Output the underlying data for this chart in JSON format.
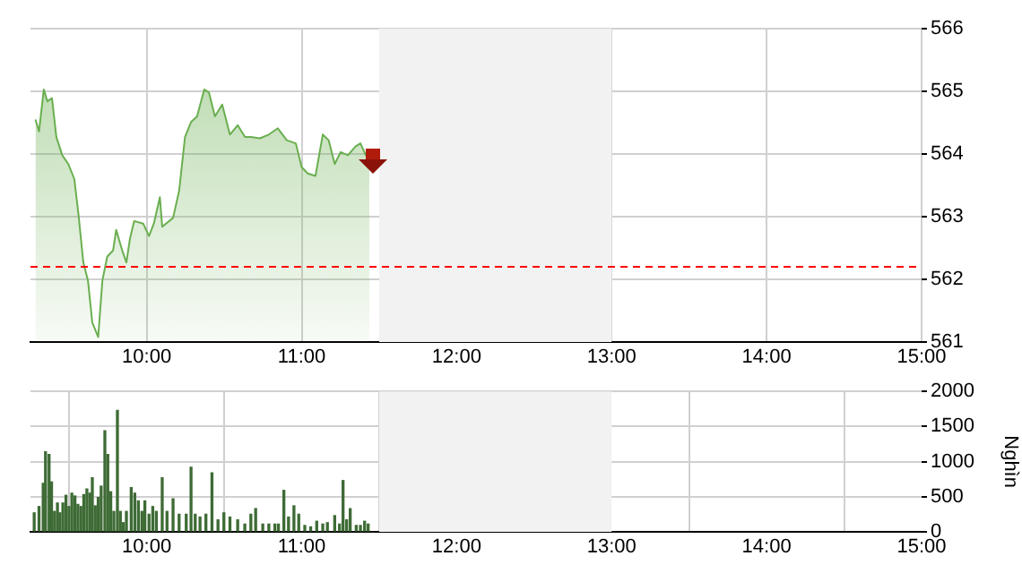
{
  "chart_data": [
    {
      "type": "area",
      "x": [
        9.282,
        9.305,
        9.336,
        9.359,
        9.389,
        9.417,
        9.455,
        9.494,
        9.533,
        9.56,
        9.591,
        9.621,
        9.649,
        9.687,
        9.714,
        9.745,
        9.783,
        9.803,
        9.842,
        9.869,
        9.892,
        9.919,
        9.977,
        10.015,
        10.046,
        10.085,
        10.1,
        10.17,
        10.209,
        10.247,
        10.286,
        10.325,
        10.371,
        10.402,
        10.44,
        10.487,
        10.537,
        10.587,
        10.634,
        10.672,
        10.73,
        10.788,
        10.846,
        10.904,
        10.962,
        11.0,
        11.039,
        11.089,
        11.136,
        11.174,
        11.213,
        11.251,
        11.298,
        11.347,
        11.379,
        11.414,
        11.437
      ],
      "series": [
        {
          "color": "#6aaf50",
          "values": [
            564.55,
            564.36,
            565.03,
            564.84,
            564.89,
            564.27,
            563.98,
            563.84,
            563.6,
            563.03,
            562.27,
            561.98,
            561.31,
            561.08,
            561.98,
            562.36,
            562.46,
            562.79,
            562.46,
            562.27,
            562.65,
            562.93,
            562.89,
            562.69,
            562.89,
            563.31,
            562.84,
            562.98,
            563.41,
            564.27,
            564.51,
            564.6,
            565.03,
            564.98,
            564.6,
            564.79,
            564.31,
            564.46,
            564.27,
            564.27,
            564.25,
            564.31,
            564.41,
            564.22,
            564.17,
            563.79,
            563.69,
            563.65,
            564.31,
            564.22,
            563.84,
            564.03,
            563.98,
            564.12,
            564.17,
            563.98,
            563.96
          ]
        }
      ],
      "xlim": [
        9.25,
        15
      ],
      "xticks": [
        {
          "value": 10,
          "label": "10:00"
        },
        {
          "value": 11,
          "label": "11:00"
        },
        {
          "value": 12,
          "label": "12:00"
        },
        {
          "value": 13,
          "label": "13:00"
        },
        {
          "value": 14,
          "label": "14:00"
        },
        {
          "value": 15,
          "label": "15:00"
        }
      ],
      "ylim": [
        561,
        566
      ],
      "yticks": [
        561,
        562,
        563,
        564,
        565,
        566
      ],
      "ref_lines": [
        {
          "axis": "y",
          "value": 562.2,
          "color": "#ff0000",
          "line_style": "dashed"
        }
      ],
      "bands": [
        {
          "axis": "x",
          "from": 11.5,
          "to": 13,
          "color": "#f2f2f2"
        }
      ],
      "grid": true,
      "legend": false,
      "marker": "none"
    },
    {
      "type": "bar",
      "x": [
        9.274,
        9.305,
        9.332,
        9.347,
        9.37,
        9.386,
        9.405,
        9.424,
        9.44,
        9.459,
        9.479,
        9.498,
        9.517,
        9.537,
        9.556,
        9.575,
        9.594,
        9.614,
        9.633,
        9.649,
        9.668,
        9.687,
        9.706,
        9.73,
        9.749,
        9.768,
        9.788,
        9.811,
        9.83,
        9.849,
        9.869,
        9.9,
        9.923,
        9.946,
        9.969,
        9.988,
        10.015,
        10.039,
        10.062,
        10.1,
        10.131,
        10.17,
        10.209,
        10.255,
        10.286,
        10.313,
        10.344,
        10.382,
        10.421,
        10.46,
        10.498,
        10.537,
        10.587,
        10.633,
        10.672,
        10.703,
        10.749,
        10.788,
        10.827,
        10.85,
        10.885,
        10.915,
        10.95,
        10.981,
        11.02,
        11.058,
        11.097,
        11.136,
        11.166,
        11.213,
        11.244,
        11.267,
        11.29,
        11.313,
        11.352,
        11.379,
        11.406,
        11.429
      ],
      "series": [
        {
          "color": "#3e6b35",
          "values": [
            270,
            360,
            690,
            1140,
            1100,
            710,
            290,
            410,
            270,
            410,
            520,
            360,
            550,
            510,
            390,
            360,
            530,
            610,
            550,
            770,
            370,
            490,
            650,
            1440,
            1100,
            570,
            290,
            1730,
            290,
            130,
            290,
            630,
            550,
            440,
            290,
            440,
            250,
            360,
            290,
            770,
            290,
            470,
            250,
            250,
            920,
            250,
            210,
            250,
            840,
            170,
            270,
            210,
            170,
            110,
            250,
            330,
            110,
            110,
            110,
            110,
            590,
            210,
            370,
            250,
            90,
            70,
            150,
            110,
            130,
            230,
            110,
            730,
            170,
            330,
            90,
            90,
            150,
            110
          ]
        }
      ],
      "xlim": [
        9.25,
        15
      ],
      "xticks": [
        {
          "value": 10,
          "label": "10:00"
        },
        {
          "value": 11,
          "label": "11:00"
        },
        {
          "value": 12,
          "label": "12:00"
        },
        {
          "value": 13,
          "label": "13:00"
        },
        {
          "value": 14,
          "label": "14:00"
        },
        {
          "value": 15,
          "label": "15:00"
        }
      ],
      "ylim": [
        0,
        2000
      ],
      "yticks": [
        0,
        500,
        1000,
        1500,
        2000
      ],
      "ylabel": "Nghìn",
      "bands": [
        {
          "axis": "x",
          "from": 11.5,
          "to": 13,
          "color": "#f2f2f2"
        }
      ],
      "grid": true,
      "legend": false
    }
  ]
}
